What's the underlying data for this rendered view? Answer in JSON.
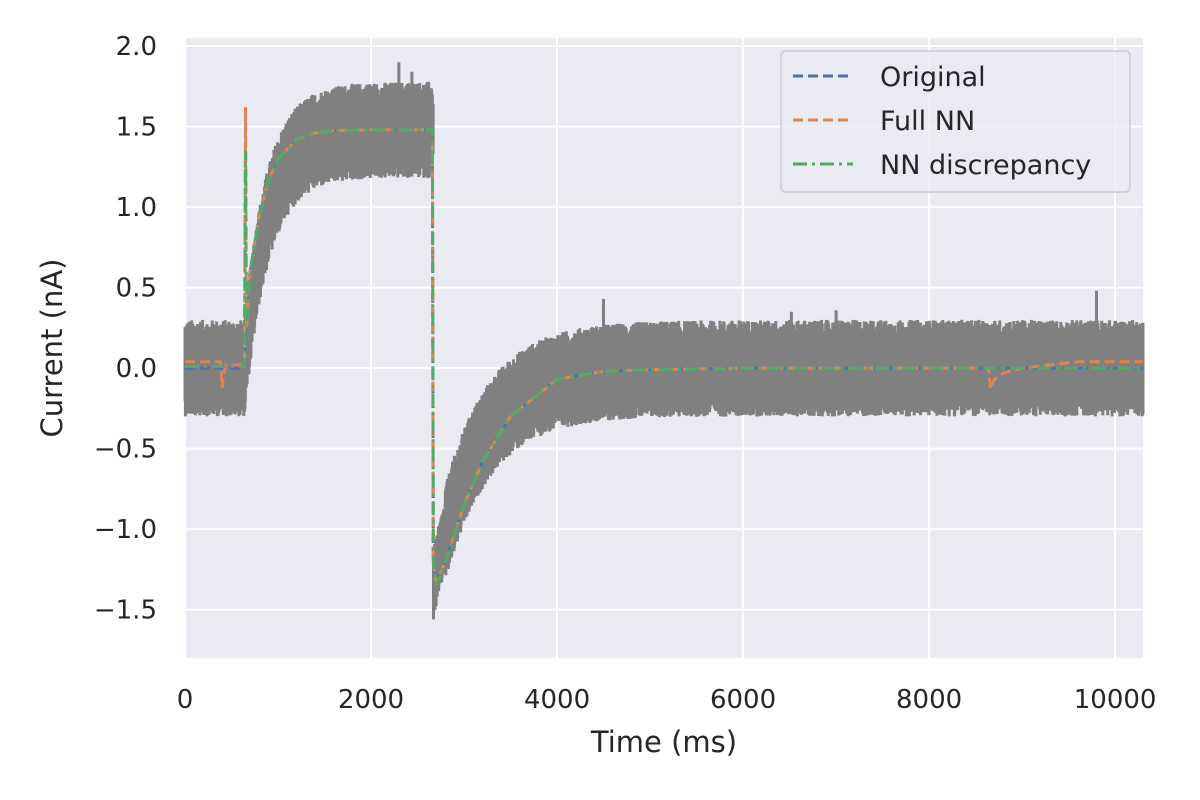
{
  "chart_data": {
    "type": "line",
    "title": "",
    "xlabel": "Time (ms)",
    "ylabel": "Current (nA)",
    "xlim": [
      0,
      10300
    ],
    "ylim": [
      -1.8,
      2.05
    ],
    "xticks": [
      0,
      2000,
      4000,
      6000,
      8000,
      10000
    ],
    "xtick_labels": [
      "0",
      "2000",
      "4000",
      "6000",
      "8000",
      "10000"
    ],
    "yticks": [
      2.0,
      1.5,
      1.0,
      0.5,
      0.0,
      -0.5,
      -1.0,
      -1.5
    ],
    "ytick_labels": [
      "2.0",
      "1.5",
      "1.0",
      "0.5",
      "0.0",
      "−0.5",
      "−1.0",
      "−1.5"
    ],
    "grid": true,
    "legend_position": "top-right",
    "noisy_data": {
      "color": "#808080",
      "description_points": [
        {
          "t": 0,
          "center": 0.0,
          "half_width": 0.3
        },
        {
          "t": 640,
          "center": 0.0,
          "half_width": 0.3
        },
        {
          "t": 1000,
          "center": 1.35,
          "half_width": 0.3
        },
        {
          "t": 2670,
          "center": 1.48,
          "half_width": 0.3
        },
        {
          "t": 2700,
          "center": -1.3,
          "half_width": 0.25
        },
        {
          "t": 4000,
          "center": -0.02,
          "half_width": 0.3
        },
        {
          "t": 10300,
          "center": 0.0,
          "half_width": 0.3
        }
      ]
    },
    "series": [
      {
        "name": "Original",
        "color": "#4c72b0",
        "style": "dashed",
        "x": [
          0,
          640,
          650,
          700,
          800,
          900,
          1000,
          1200,
          1400,
          1600,
          2000,
          2660,
          2670,
          2700,
          2800,
          3000,
          3200,
          3500,
          4000,
          4500,
          5000,
          6000,
          8000,
          10300
        ],
        "y": [
          0.0,
          0.0,
          0.25,
          0.6,
          0.95,
          1.17,
          1.3,
          1.42,
          1.46,
          1.475,
          1.48,
          1.48,
          -1.2,
          -1.32,
          -1.2,
          -0.85,
          -0.58,
          -0.3,
          -0.07,
          -0.02,
          -0.01,
          0.0,
          0.0,
          0.0
        ]
      },
      {
        "name": "Full NN",
        "color": "#dd8452",
        "style": "dashed",
        "x": [
          0,
          380,
          400,
          420,
          440,
          640,
          650,
          655,
          660,
          670,
          700,
          800,
          900,
          1000,
          1200,
          1400,
          1600,
          2000,
          2660,
          2670,
          2700,
          2800,
          3000,
          3200,
          3500,
          4000,
          4500,
          5000,
          6000,
          8640,
          8660,
          8700,
          8800,
          9000,
          9300,
          9600,
          10300
        ],
        "y": [
          0.04,
          0.04,
          -0.12,
          -0.02,
          0.02,
          0.02,
          1.62,
          1.2,
          0.25,
          0.3,
          0.6,
          0.95,
          1.17,
          1.3,
          1.42,
          1.46,
          1.475,
          1.48,
          1.48,
          -1.2,
          -1.33,
          -1.2,
          -0.85,
          -0.58,
          -0.3,
          -0.07,
          -0.02,
          -0.01,
          0.0,
          0.0,
          -0.13,
          -0.07,
          -0.03,
          0.0,
          0.02,
          0.04,
          0.04
        ]
      },
      {
        "name": "NN discrepancy",
        "color": "#55a868",
        "style": "dashdot",
        "x": [
          0,
          640,
          650,
          655,
          660,
          670,
          700,
          800,
          900,
          1000,
          1200,
          1400,
          1600,
          2000,
          2660,
          2670,
          2700,
          2800,
          3000,
          3200,
          3500,
          4000,
          4500,
          5000,
          6000,
          8000,
          10300
        ],
        "y": [
          0.01,
          0.01,
          1.35,
          0.9,
          0.25,
          0.3,
          0.6,
          0.95,
          1.17,
          1.3,
          1.42,
          1.46,
          1.475,
          1.48,
          1.48,
          -1.2,
          -1.35,
          -1.2,
          -0.85,
          -0.58,
          -0.3,
          -0.07,
          -0.02,
          -0.01,
          0.0,
          0.0,
          0.0
        ]
      }
    ]
  }
}
